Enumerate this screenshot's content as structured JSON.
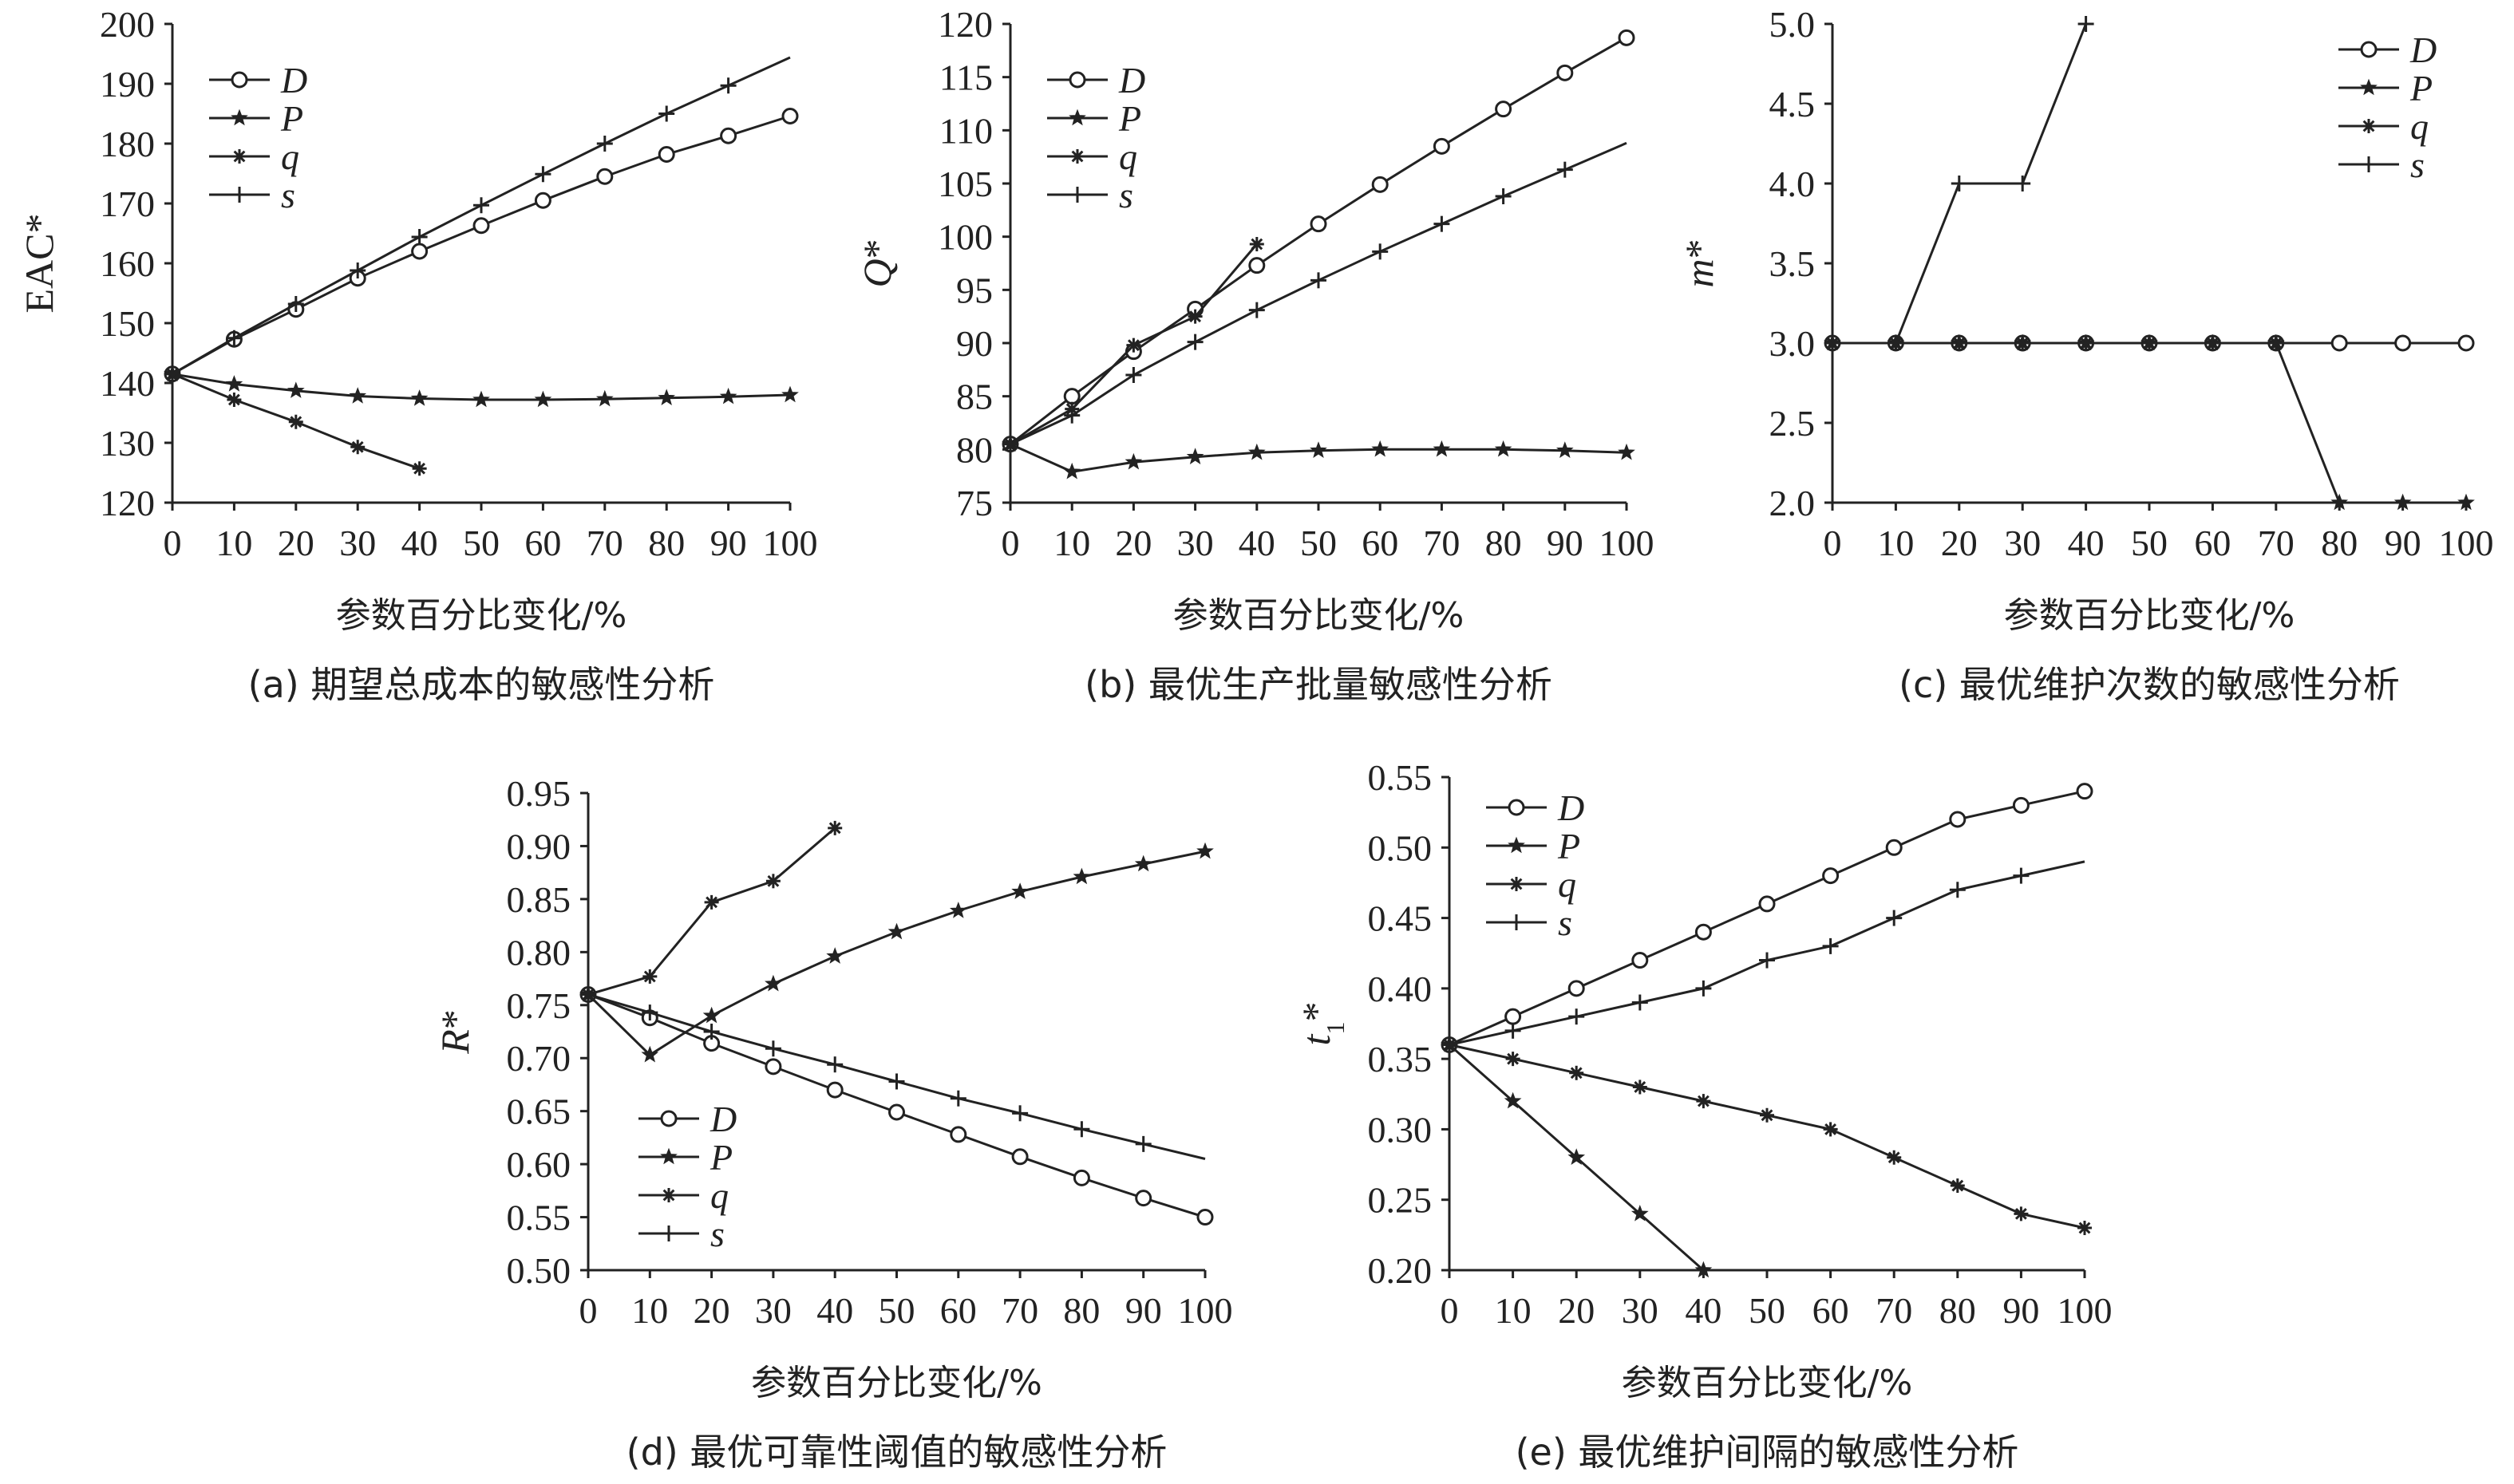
{
  "x_axis_title": "参数百分比变化/%",
  "chart_data": [
    {
      "id": "a",
      "type": "line",
      "caption": "(a) 期望总成本的敏感性分析",
      "ylabel": "EAC*",
      "ylabel_italic": false,
      "x_ticks": [
        0,
        10,
        20,
        30,
        40,
        50,
        60,
        70,
        80,
        90,
        100
      ],
      "y_ticks": [
        "120",
        "130",
        "140",
        "150",
        "160",
        "170",
        "180",
        "190",
        "200"
      ],
      "xlim": [
        0,
        100
      ],
      "ylim": [
        120,
        200
      ],
      "legend_position": "top-left",
      "series": [
        {
          "name": "D",
          "marker": "circle",
          "x": [
            0,
            10,
            20,
            30,
            40,
            50,
            60,
            70,
            80,
            90,
            100
          ],
          "y": [
            141.5,
            147.3,
            152.3,
            157.5,
            162.0,
            166.3,
            170.5,
            174.5,
            178.2,
            181.3,
            184.6
          ]
        },
        {
          "name": "P",
          "marker": "star",
          "x": [
            0,
            10,
            20,
            30,
            40,
            50,
            60,
            70,
            80,
            90,
            100
          ],
          "y": [
            141.5,
            139.8,
            138.7,
            137.8,
            137.4,
            137.2,
            137.2,
            137.3,
            137.5,
            137.7,
            138.0
          ]
        },
        {
          "name": "q",
          "marker": "asterisk",
          "x": [
            0,
            10,
            20,
            30,
            40
          ],
          "y": [
            141.5,
            137.2,
            133.5,
            129.3,
            125.7
          ]
        },
        {
          "name": "s",
          "marker": "plus",
          "x": [
            0,
            10,
            20,
            30,
            40,
            50,
            60,
            70,
            80,
            90,
            100
          ],
          "y": [
            141.5,
            147.5,
            153.2,
            158.8,
            164.4,
            169.7,
            174.9,
            180.0,
            185.0,
            189.7,
            194.4
          ]
        }
      ]
    },
    {
      "id": "b",
      "type": "line",
      "caption": "(b) 最优生产批量敏感性分析",
      "ylabel": "Q*",
      "ylabel_italic": true,
      "x_ticks": [
        0,
        10,
        20,
        30,
        40,
        50,
        60,
        70,
        80,
        90,
        100
      ],
      "y_ticks": [
        "75",
        "80",
        "85",
        "90",
        "95",
        "100",
        "105",
        "110",
        "115",
        "120"
      ],
      "xlim": [
        0,
        100
      ],
      "ylim": [
        75,
        120
      ],
      "legend_position": "top-left",
      "series": [
        {
          "name": "D",
          "marker": "circle",
          "x": [
            0,
            10,
            20,
            30,
            40,
            50,
            60,
            70,
            80,
            90,
            100
          ],
          "y": [
            80.5,
            85.0,
            89.2,
            93.2,
            97.3,
            101.2,
            104.9,
            108.5,
            112.0,
            115.4,
            118.7
          ]
        },
        {
          "name": "P",
          "marker": "star",
          "x": [
            0,
            10,
            20,
            30,
            40,
            50,
            60,
            70,
            80,
            90,
            100
          ],
          "y": [
            80.5,
            77.9,
            78.8,
            79.3,
            79.7,
            79.9,
            80.0,
            80.0,
            80.0,
            79.9,
            79.7
          ]
        },
        {
          "name": "q",
          "marker": "asterisk",
          "x": [
            0,
            10,
            20,
            30,
            40
          ],
          "y": [
            80.5,
            83.8,
            89.8,
            92.5,
            99.3
          ]
        },
        {
          "name": "s",
          "marker": "plus",
          "x": [
            0,
            10,
            20,
            30,
            40,
            50,
            60,
            70,
            80,
            90,
            100
          ],
          "y": [
            80.5,
            83.2,
            87.0,
            90.1,
            93.1,
            95.9,
            98.6,
            101.2,
            103.8,
            106.3,
            108.8
          ]
        }
      ]
    },
    {
      "id": "c",
      "type": "line",
      "caption": "(c) 最优维护次数的敏感性分析",
      "ylabel": "m*",
      "ylabel_italic": true,
      "x_ticks": [
        0,
        10,
        20,
        30,
        40,
        50,
        60,
        70,
        80,
        90,
        100
      ],
      "y_ticks": [
        "2.0",
        "2.5",
        "3.0",
        "3.5",
        "4.0",
        "4.5",
        "5.0"
      ],
      "xlim": [
        0,
        100
      ],
      "ylim": [
        2.0,
        5.0
      ],
      "legend_position": "top-right",
      "series": [
        {
          "name": "D",
          "marker": "circle",
          "x": [
            0,
            10,
            20,
            30,
            40,
            50,
            60,
            70,
            80,
            90,
            100
          ],
          "y": [
            3,
            3,
            3,
            3,
            3,
            3,
            3,
            3,
            3,
            3,
            3
          ]
        },
        {
          "name": "P",
          "marker": "star",
          "x": [
            0,
            10,
            20,
            30,
            40,
            50,
            60,
            70,
            80,
            90,
            100
          ],
          "y": [
            3,
            3,
            3,
            3,
            3,
            3,
            3,
            3,
            2,
            2,
            2
          ]
        },
        {
          "name": "q",
          "marker": "asterisk",
          "x": [
            0,
            10,
            20,
            30,
            40,
            50,
            60,
            70
          ],
          "y": [
            3,
            3,
            3,
            3,
            3,
            3,
            3,
            3
          ]
        },
        {
          "name": "s",
          "marker": "plus",
          "x": [
            0,
            10,
            20,
            30,
            40
          ],
          "y": [
            3,
            3,
            4,
            4,
            5
          ]
        }
      ]
    },
    {
      "id": "d",
      "type": "line",
      "caption": "(d) 最优可靠性阈值的敏感性分析",
      "ylabel": "R*",
      "ylabel_italic": true,
      "x_ticks": [
        0,
        10,
        20,
        30,
        40,
        50,
        60,
        70,
        80,
        90,
        100
      ],
      "y_ticks": [
        "0.50",
        "0.55",
        "0.60",
        "0.65",
        "0.70",
        "0.75",
        "0.80",
        "0.85",
        "0.90",
        "0.95"
      ],
      "xlim": [
        0,
        100
      ],
      "ylim": [
        0.5,
        0.95
      ],
      "legend_position": "bottom-left",
      "series": [
        {
          "name": "D",
          "marker": "circle",
          "x": [
            0,
            10,
            20,
            30,
            40,
            50,
            60,
            70,
            80,
            90,
            100
          ],
          "y": [
            0.76,
            0.738,
            0.714,
            0.692,
            0.67,
            0.649,
            0.628,
            0.607,
            0.587,
            0.568,
            0.55
          ]
        },
        {
          "name": "P",
          "marker": "star",
          "x": [
            0,
            10,
            20,
            30,
            40,
            50,
            60,
            70,
            80,
            90,
            100
          ],
          "y": [
            0.76,
            0.703,
            0.74,
            0.77,
            0.796,
            0.819,
            0.839,
            0.857,
            0.871,
            0.883,
            0.895
          ]
        },
        {
          "name": "q",
          "marker": "asterisk",
          "x": [
            0,
            10,
            20,
            30,
            40
          ],
          "y": [
            0.76,
            0.777,
            0.847,
            0.867,
            0.917
          ]
        },
        {
          "name": "s",
          "marker": "plus",
          "x": [
            0,
            10,
            20,
            30,
            40,
            50,
            60,
            70,
            80,
            90,
            100
          ],
          "y": [
            0.76,
            0.743,
            0.725,
            0.709,
            0.694,
            0.678,
            0.662,
            0.648,
            0.633,
            0.619,
            0.605
          ]
        }
      ]
    },
    {
      "id": "e",
      "type": "line",
      "caption": "(e) 最优维护间隔的敏感性分析",
      "ylabel": "t1*",
      "ylabel_italic": true,
      "ylabel_subscript": "1",
      "x_ticks": [
        0,
        10,
        20,
        30,
        40,
        50,
        60,
        70,
        80,
        90,
        100
      ],
      "y_ticks": [
        "0.20",
        "0.25",
        "0.30",
        "0.35",
        "0.40",
        "0.45",
        "0.50",
        "0.55"
      ],
      "xlim": [
        0,
        100
      ],
      "ylim": [
        0.2,
        0.55
      ],
      "legend_position": "top-left",
      "series": [
        {
          "name": "D",
          "marker": "circle",
          "x": [
            0,
            10,
            20,
            30,
            40,
            50,
            60,
            70,
            80,
            90,
            100
          ],
          "y": [
            0.36,
            0.38,
            0.4,
            0.42,
            0.44,
            0.46,
            0.48,
            0.5,
            0.52,
            0.53,
            0.54
          ]
        },
        {
          "name": "P",
          "marker": "star",
          "x": [
            0,
            10,
            20,
            30,
            40
          ],
          "y": [
            0.36,
            0.32,
            0.28,
            0.24,
            0.2
          ]
        },
        {
          "name": "q",
          "marker": "asterisk",
          "x": [
            0,
            10,
            20,
            30,
            40,
            50,
            60,
            70,
            80,
            90,
            100
          ],
          "y": [
            0.36,
            0.35,
            0.34,
            0.33,
            0.32,
            0.31,
            0.3,
            0.28,
            0.26,
            0.24,
            0.23
          ]
        },
        {
          "name": "s",
          "marker": "plus",
          "x": [
            0,
            10,
            20,
            30,
            40,
            50,
            60,
            70,
            80,
            90,
            100
          ],
          "y": [
            0.36,
            0.37,
            0.38,
            0.39,
            0.4,
            0.42,
            0.43,
            0.45,
            0.47,
            0.48,
            0.49
          ]
        }
      ]
    }
  ]
}
